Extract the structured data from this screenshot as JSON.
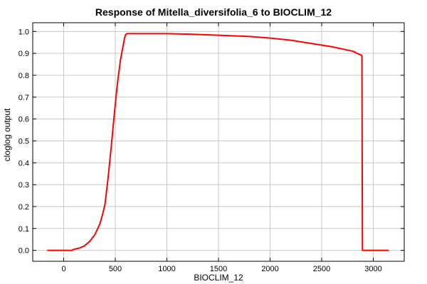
{
  "chart_data": {
    "type": "line",
    "title": "Response of Mitella_diversifolia_6 to BIOCLIM_12",
    "xlabel": "BIOCLIM_12",
    "ylabel": "cloglog output",
    "xlim": [
      -300,
      3300
    ],
    "ylim": [
      -0.05,
      1.04
    ],
    "xticks": [
      0,
      500,
      1000,
      1500,
      2000,
      2500,
      3000
    ],
    "xtick_labels": [
      "0",
      "500",
      "1000",
      "1500",
      "2000",
      "2500",
      "3000"
    ],
    "yticks": [
      0.0,
      0.1,
      0.2,
      0.3,
      0.4,
      0.5,
      0.6,
      0.7,
      0.8,
      0.9,
      1.0
    ],
    "ytick_labels": [
      "0.0",
      "0.1",
      "0.2",
      "0.3",
      "0.4",
      "0.5",
      "0.6",
      "0.7",
      "0.8",
      "0.9",
      "1.0"
    ],
    "grid": true,
    "series": [
      {
        "color": "#ff0000",
        "x": [
          -160,
          80,
          100,
          150,
          200,
          250,
          300,
          350,
          380,
          400,
          430,
          460,
          490,
          520,
          550,
          570,
          590,
          600,
          610,
          650,
          800,
          1000,
          1200,
          1500,
          1800,
          2000,
          2200,
          2400,
          2600,
          2800,
          2890,
          2895,
          3000,
          3150
        ],
        "y": [
          0.0,
          0.0,
          0.005,
          0.01,
          0.02,
          0.04,
          0.07,
          0.12,
          0.17,
          0.21,
          0.33,
          0.47,
          0.62,
          0.76,
          0.87,
          0.92,
          0.97,
          0.985,
          0.99,
          0.99,
          0.99,
          0.99,
          0.988,
          0.983,
          0.977,
          0.97,
          0.96,
          0.945,
          0.93,
          0.91,
          0.89,
          0.0,
          0.0,
          0.0
        ]
      }
    ]
  }
}
